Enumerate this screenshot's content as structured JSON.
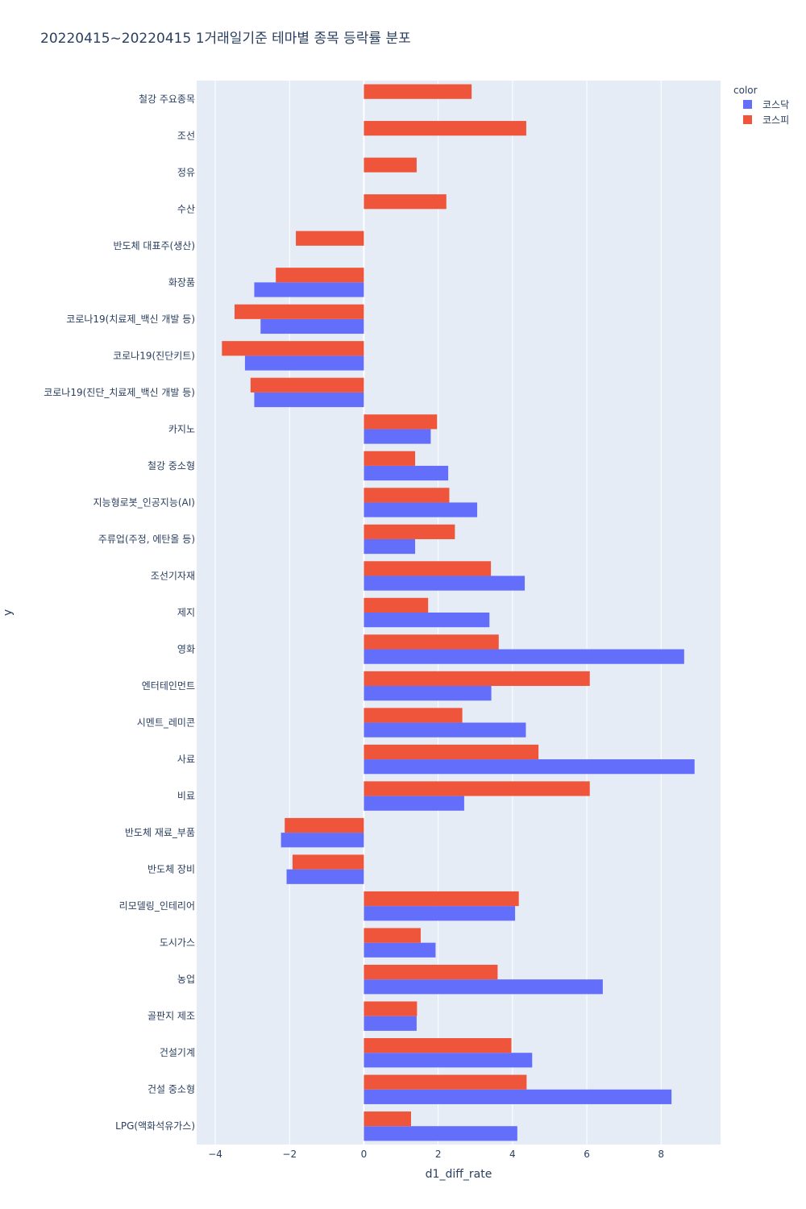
{
  "chart_data": {
    "type": "bar",
    "orientation": "horizontal",
    "barmode": "group",
    "title": "20220415~20220415 1거래일기준 테마별 종목 등락률 분포",
    "xlabel": "d1_diff_rate",
    "ylabel": "y",
    "xlim": [
      -4.5,
      9.6
    ],
    "xticks": [
      -4,
      -2,
      0,
      2,
      4,
      6,
      8
    ],
    "xtick_labels": [
      "−4",
      "−2",
      "0",
      "2",
      "4",
      "6",
      "8"
    ],
    "grid": true,
    "legend": {
      "title": "color",
      "position": "top-right"
    },
    "categories": [
      "철강 주요종목",
      "조선",
      "정유",
      "수산",
      "반도체 대표주(생산)",
      "화장품",
      "코로나19(치료제_백신 개발 등)",
      "코로나19(진단키트)",
      "코로나19(진단_치료제_백신 개발 등)",
      "카지노",
      "철강 중소형",
      "지능형로봇_인공지능(AI)",
      "주류업(주정, 에탄올 등)",
      "조선기자재",
      "제지",
      "영화",
      "엔터테인먼트",
      "시멘트_레미콘",
      "사료",
      "비료",
      "반도체 재료_부품",
      "반도체 장비",
      "리모델링_인테리어",
      "도시가스",
      "농업",
      "골판지 제조",
      "건설기계",
      "건설 중소형",
      "LPG(액화석유가스)"
    ],
    "series": [
      {
        "name": "코스닥",
        "color": "#636efa",
        "values": [
          null,
          null,
          null,
          null,
          null,
          -2.95,
          -2.78,
          -3.2,
          -2.95,
          1.8,
          2.27,
          3.05,
          1.38,
          4.33,
          3.38,
          8.62,
          3.43,
          4.36,
          8.9,
          2.7,
          -2.23,
          -2.08,
          4.07,
          1.93,
          6.43,
          1.42,
          4.53,
          8.28,
          4.13
        ]
      },
      {
        "name": "코스피",
        "color": "#ef553b",
        "values": [
          2.9,
          4.37,
          1.42,
          2.22,
          -1.83,
          -2.37,
          -3.48,
          -3.82,
          -3.05,
          1.97,
          1.38,
          2.3,
          2.45,
          3.42,
          1.73,
          3.63,
          6.08,
          2.65,
          4.7,
          6.08,
          -2.13,
          -1.92,
          4.17,
          1.53,
          3.6,
          1.43,
          3.97,
          4.38,
          1.27
        ]
      }
    ]
  }
}
